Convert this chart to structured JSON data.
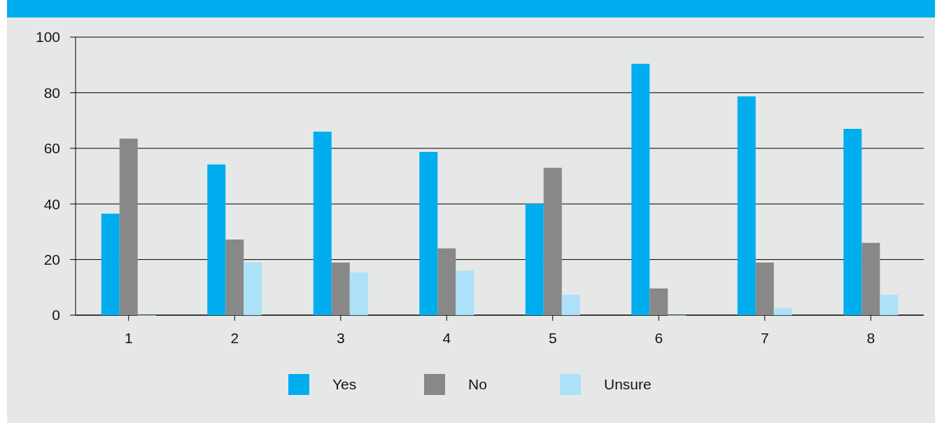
{
  "chart_data": {
    "type": "bar",
    "categories": [
      "1",
      "2",
      "3",
      "4",
      "5",
      "6",
      "7",
      "8"
    ],
    "series": [
      {
        "name": "Yes",
        "color": "#00aeef",
        "values": [
          36.5,
          54.2,
          66,
          58.7,
          40,
          90.4,
          78.7,
          67
        ]
      },
      {
        "name": "No",
        "color": "#888888",
        "values": [
          63.5,
          27.2,
          18.9,
          24,
          53,
          9.6,
          18.9,
          26
        ]
      },
      {
        "name": "Unsure",
        "color": "#ade1f8",
        "values": [
          0,
          18.9,
          15.4,
          16,
          7.3,
          0,
          2.5,
          7.3
        ]
      }
    ],
    "ylim": [
      0,
      100
    ],
    "yticks": [
      0,
      20,
      40,
      60,
      80,
      100
    ],
    "grid": "y",
    "legend": "bottom"
  }
}
